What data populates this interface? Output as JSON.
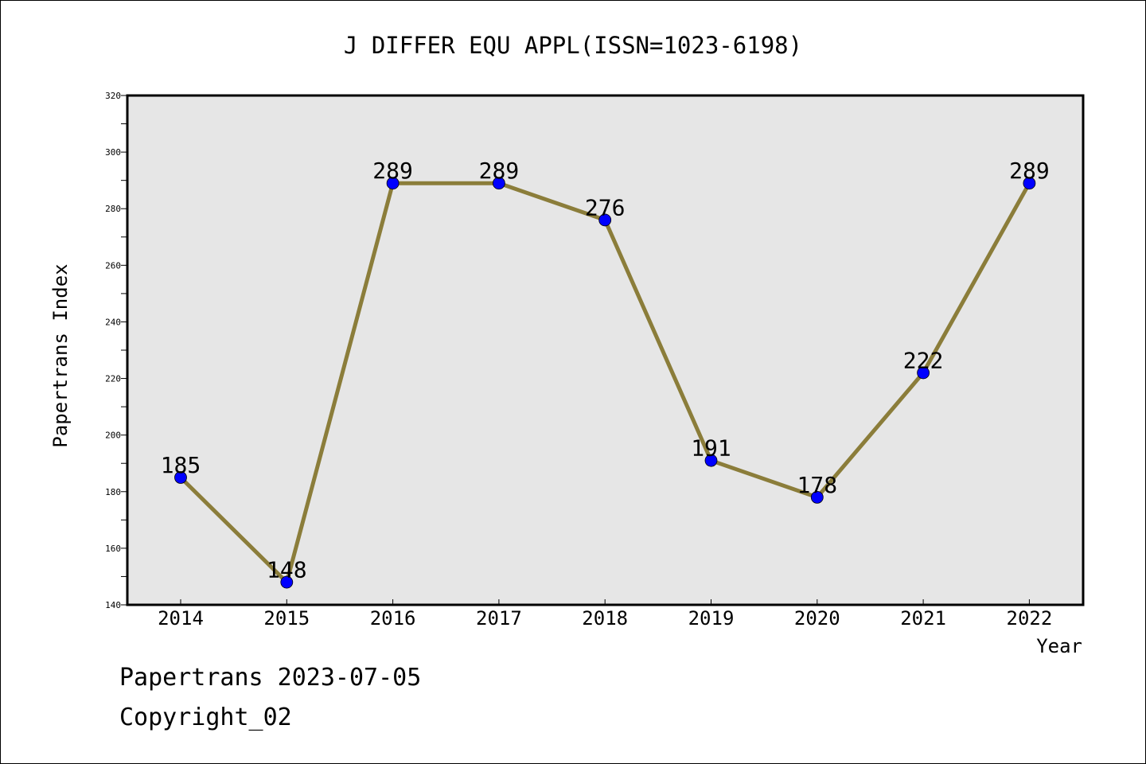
{
  "chart_data": {
    "type": "line",
    "title": "J DIFFER EQU APPL(ISSN=1023-6198)",
    "xlabel": "Year",
    "ylabel": "Papertrans Index",
    "categories": [
      "2014",
      "2015",
      "2016",
      "2017",
      "2018",
      "2019",
      "2020",
      "2021",
      "2022"
    ],
    "values": [
      185,
      148,
      289,
      289,
      276,
      191,
      178,
      222,
      289
    ],
    "data_labels": [
      "185",
      "148",
      "289",
      "289",
      "276",
      "191",
      "178",
      "222",
      "289"
    ],
    "ylim": [
      140,
      320
    ],
    "yticks": [
      "140",
      "160",
      "180",
      "200",
      "220",
      "240",
      "260",
      "280",
      "300",
      "320"
    ],
    "grid": false,
    "legend": "none",
    "colors": {
      "line": "#8b7d3a",
      "marker": "#0000ff",
      "plot_background": "#e6e6e6"
    }
  },
  "footer": {
    "date_line": "Papertrans 2023-07-05",
    "copyright_line": "Copyright_02"
  }
}
